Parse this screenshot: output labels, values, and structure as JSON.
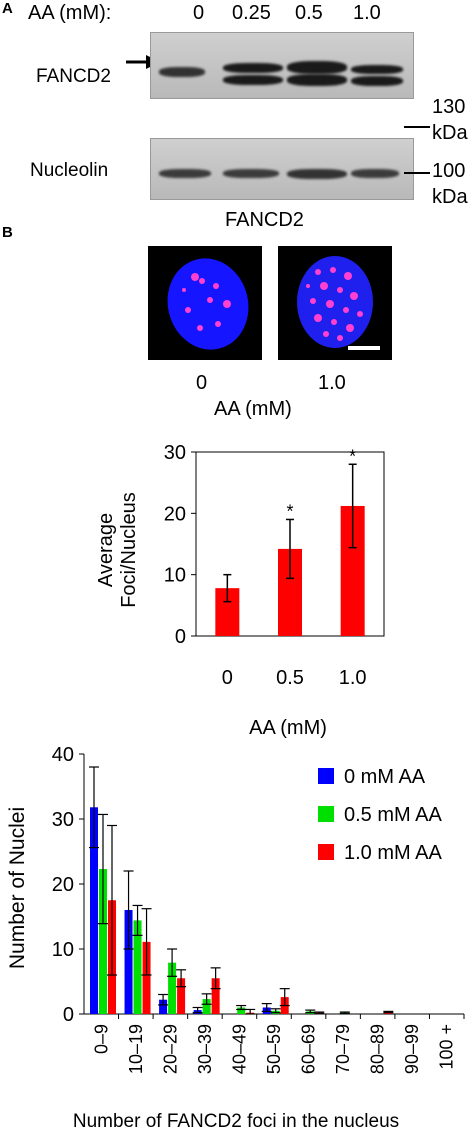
{
  "panel_a": {
    "letter": "A",
    "conc_label": "AA (mM):",
    "concentrations": [
      "0",
      "0.25",
      "0.5",
      "1.0"
    ],
    "protein_1": "FANCD2",
    "protein_2": "Nucleolin",
    "marker_1_value": "130",
    "marker_1_unit": "kDa",
    "marker_2_value": "100",
    "marker_2_unit": "kDa"
  },
  "panel_b": {
    "letter": "B",
    "image_title": "FANCD2",
    "image_labels": [
      "0",
      "1.0"
    ],
    "image_axis": "AA (mM)"
  },
  "chart_data": [
    {
      "type": "bar",
      "categories": [
        "0",
        "0.5",
        "1.0"
      ],
      "values": [
        7.8,
        14.2,
        21.2
      ],
      "errors": [
        2.2,
        4.8,
        6.8
      ],
      "significance": [
        "",
        "*",
        "*"
      ],
      "color": "#ff0000",
      "xlabel": "AA (mM)",
      "ylabel": "Average Foci/Nucleus",
      "ylim": [
        0,
        30
      ],
      "yticks": [
        "0",
        "10",
        "20",
        "30"
      ]
    },
    {
      "type": "bar",
      "categories": [
        "0–9",
        "10–19",
        "20–29",
        "30–39",
        "40–49",
        "50–59",
        "60–69",
        "70–79",
        "80–89",
        "90–99",
        "100 +"
      ],
      "series": [
        {
          "name": "0 mM AA",
          "color": "#0000ff",
          "values": [
            31.8,
            16.0,
            2.2,
            0.6,
            0,
            1.0,
            0,
            0,
            0,
            0,
            0
          ],
          "errors": [
            6.2,
            6.0,
            0.8,
            0.4,
            0,
            0.6,
            0,
            0,
            0,
            0,
            0
          ]
        },
        {
          "name": "0.5 mM AA",
          "color": "#00e000",
          "values": [
            22.3,
            14.4,
            7.9,
            2.3,
            1.0,
            0.5,
            0.4,
            0.2,
            0,
            0,
            0
          ],
          "errors": [
            8.4,
            2.3,
            2.1,
            0.8,
            0.3,
            0.3,
            0.2,
            0.1,
            0,
            0,
            0
          ]
        },
        {
          "name": "1.0 mM AA",
          "color": "#ff0000",
          "values": [
            17.5,
            11.1,
            5.5,
            5.5,
            0.2,
            2.6,
            0.2,
            0,
            0.3,
            0,
            0
          ],
          "errors": [
            11.5,
            5.1,
            1.3,
            1.6,
            0.5,
            1.3,
            0.1,
            0,
            0.1,
            0,
            0
          ]
        }
      ],
      "xlabel": "Number of FANCD2 foci in the nucleus",
      "ylabel": "Number of Nuclei",
      "ylim": [
        0,
        40
      ],
      "yticks": [
        "0",
        "10",
        "20",
        "30",
        "40"
      ],
      "legend": "top-right"
    }
  ]
}
